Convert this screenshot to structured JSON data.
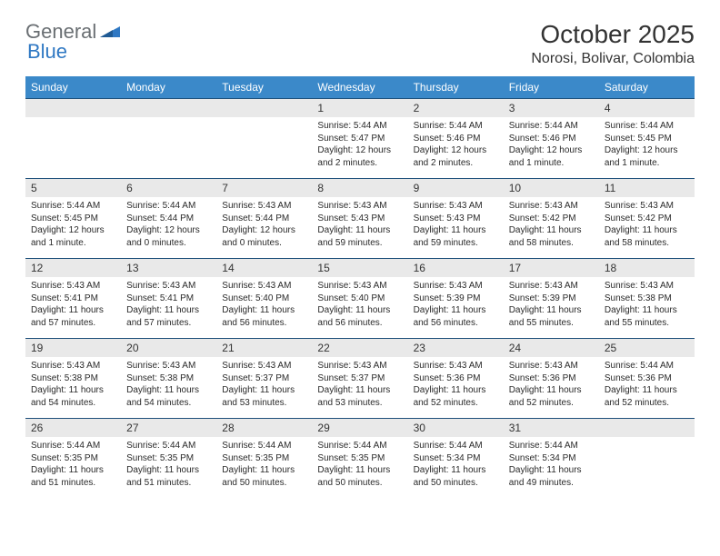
{
  "brand": {
    "part1": "General",
    "part2": "Blue"
  },
  "title": "October 2025",
  "location": "Norosi, Bolivar, Colombia",
  "colors": {
    "header_bg": "#3b89c9",
    "header_text": "#ffffff",
    "daynum_bg": "#e9e9e9",
    "row_divider": "#1d4f7a",
    "body_text": "#2a2a2a",
    "title_text": "#333333",
    "logo_gray": "#6a6f73",
    "logo_blue": "#2f78c3",
    "page_bg": "#ffffff"
  },
  "typography": {
    "title_fontsize": 28,
    "location_fontsize": 16,
    "dayhead_fontsize": 12,
    "daynum_fontsize": 12,
    "cell_fontsize": 10,
    "font_family": "Arial"
  },
  "dayNames": [
    "Sunday",
    "Monday",
    "Tuesday",
    "Wednesday",
    "Thursday",
    "Friday",
    "Saturday"
  ],
  "weeks": [
    {
      "nums": [
        "",
        "",
        "",
        "1",
        "2",
        "3",
        "4"
      ],
      "cells": [
        {
          "sunrise": "",
          "sunset": "",
          "daylight": ""
        },
        {
          "sunrise": "",
          "sunset": "",
          "daylight": ""
        },
        {
          "sunrise": "",
          "sunset": "",
          "daylight": ""
        },
        {
          "sunrise": "Sunrise: 5:44 AM",
          "sunset": "Sunset: 5:47 PM",
          "daylight": "Daylight: 12 hours and 2 minutes."
        },
        {
          "sunrise": "Sunrise: 5:44 AM",
          "sunset": "Sunset: 5:46 PM",
          "daylight": "Daylight: 12 hours and 2 minutes."
        },
        {
          "sunrise": "Sunrise: 5:44 AM",
          "sunset": "Sunset: 5:46 PM",
          "daylight": "Daylight: 12 hours and 1 minute."
        },
        {
          "sunrise": "Sunrise: 5:44 AM",
          "sunset": "Sunset: 5:45 PM",
          "daylight": "Daylight: 12 hours and 1 minute."
        }
      ]
    },
    {
      "nums": [
        "5",
        "6",
        "7",
        "8",
        "9",
        "10",
        "11"
      ],
      "cells": [
        {
          "sunrise": "Sunrise: 5:44 AM",
          "sunset": "Sunset: 5:45 PM",
          "daylight": "Daylight: 12 hours and 1 minute."
        },
        {
          "sunrise": "Sunrise: 5:44 AM",
          "sunset": "Sunset: 5:44 PM",
          "daylight": "Daylight: 12 hours and 0 minutes."
        },
        {
          "sunrise": "Sunrise: 5:43 AM",
          "sunset": "Sunset: 5:44 PM",
          "daylight": "Daylight: 12 hours and 0 minutes."
        },
        {
          "sunrise": "Sunrise: 5:43 AM",
          "sunset": "Sunset: 5:43 PM",
          "daylight": "Daylight: 11 hours and 59 minutes."
        },
        {
          "sunrise": "Sunrise: 5:43 AM",
          "sunset": "Sunset: 5:43 PM",
          "daylight": "Daylight: 11 hours and 59 minutes."
        },
        {
          "sunrise": "Sunrise: 5:43 AM",
          "sunset": "Sunset: 5:42 PM",
          "daylight": "Daylight: 11 hours and 58 minutes."
        },
        {
          "sunrise": "Sunrise: 5:43 AM",
          "sunset": "Sunset: 5:42 PM",
          "daylight": "Daylight: 11 hours and 58 minutes."
        }
      ]
    },
    {
      "nums": [
        "12",
        "13",
        "14",
        "15",
        "16",
        "17",
        "18"
      ],
      "cells": [
        {
          "sunrise": "Sunrise: 5:43 AM",
          "sunset": "Sunset: 5:41 PM",
          "daylight": "Daylight: 11 hours and 57 minutes."
        },
        {
          "sunrise": "Sunrise: 5:43 AM",
          "sunset": "Sunset: 5:41 PM",
          "daylight": "Daylight: 11 hours and 57 minutes."
        },
        {
          "sunrise": "Sunrise: 5:43 AM",
          "sunset": "Sunset: 5:40 PM",
          "daylight": "Daylight: 11 hours and 56 minutes."
        },
        {
          "sunrise": "Sunrise: 5:43 AM",
          "sunset": "Sunset: 5:40 PM",
          "daylight": "Daylight: 11 hours and 56 minutes."
        },
        {
          "sunrise": "Sunrise: 5:43 AM",
          "sunset": "Sunset: 5:39 PM",
          "daylight": "Daylight: 11 hours and 56 minutes."
        },
        {
          "sunrise": "Sunrise: 5:43 AM",
          "sunset": "Sunset: 5:39 PM",
          "daylight": "Daylight: 11 hours and 55 minutes."
        },
        {
          "sunrise": "Sunrise: 5:43 AM",
          "sunset": "Sunset: 5:38 PM",
          "daylight": "Daylight: 11 hours and 55 minutes."
        }
      ]
    },
    {
      "nums": [
        "19",
        "20",
        "21",
        "22",
        "23",
        "24",
        "25"
      ],
      "cells": [
        {
          "sunrise": "Sunrise: 5:43 AM",
          "sunset": "Sunset: 5:38 PM",
          "daylight": "Daylight: 11 hours and 54 minutes."
        },
        {
          "sunrise": "Sunrise: 5:43 AM",
          "sunset": "Sunset: 5:38 PM",
          "daylight": "Daylight: 11 hours and 54 minutes."
        },
        {
          "sunrise": "Sunrise: 5:43 AM",
          "sunset": "Sunset: 5:37 PM",
          "daylight": "Daylight: 11 hours and 53 minutes."
        },
        {
          "sunrise": "Sunrise: 5:43 AM",
          "sunset": "Sunset: 5:37 PM",
          "daylight": "Daylight: 11 hours and 53 minutes."
        },
        {
          "sunrise": "Sunrise: 5:43 AM",
          "sunset": "Sunset: 5:36 PM",
          "daylight": "Daylight: 11 hours and 52 minutes."
        },
        {
          "sunrise": "Sunrise: 5:43 AM",
          "sunset": "Sunset: 5:36 PM",
          "daylight": "Daylight: 11 hours and 52 minutes."
        },
        {
          "sunrise": "Sunrise: 5:44 AM",
          "sunset": "Sunset: 5:36 PM",
          "daylight": "Daylight: 11 hours and 52 minutes."
        }
      ]
    },
    {
      "nums": [
        "26",
        "27",
        "28",
        "29",
        "30",
        "31",
        ""
      ],
      "cells": [
        {
          "sunrise": "Sunrise: 5:44 AM",
          "sunset": "Sunset: 5:35 PM",
          "daylight": "Daylight: 11 hours and 51 minutes."
        },
        {
          "sunrise": "Sunrise: 5:44 AM",
          "sunset": "Sunset: 5:35 PM",
          "daylight": "Daylight: 11 hours and 51 minutes."
        },
        {
          "sunrise": "Sunrise: 5:44 AM",
          "sunset": "Sunset: 5:35 PM",
          "daylight": "Daylight: 11 hours and 50 minutes."
        },
        {
          "sunrise": "Sunrise: 5:44 AM",
          "sunset": "Sunset: 5:35 PM",
          "daylight": "Daylight: 11 hours and 50 minutes."
        },
        {
          "sunrise": "Sunrise: 5:44 AM",
          "sunset": "Sunset: 5:34 PM",
          "daylight": "Daylight: 11 hours and 50 minutes."
        },
        {
          "sunrise": "Sunrise: 5:44 AM",
          "sunset": "Sunset: 5:34 PM",
          "daylight": "Daylight: 11 hours and 49 minutes."
        },
        {
          "sunrise": "",
          "sunset": "",
          "daylight": ""
        }
      ]
    }
  ]
}
